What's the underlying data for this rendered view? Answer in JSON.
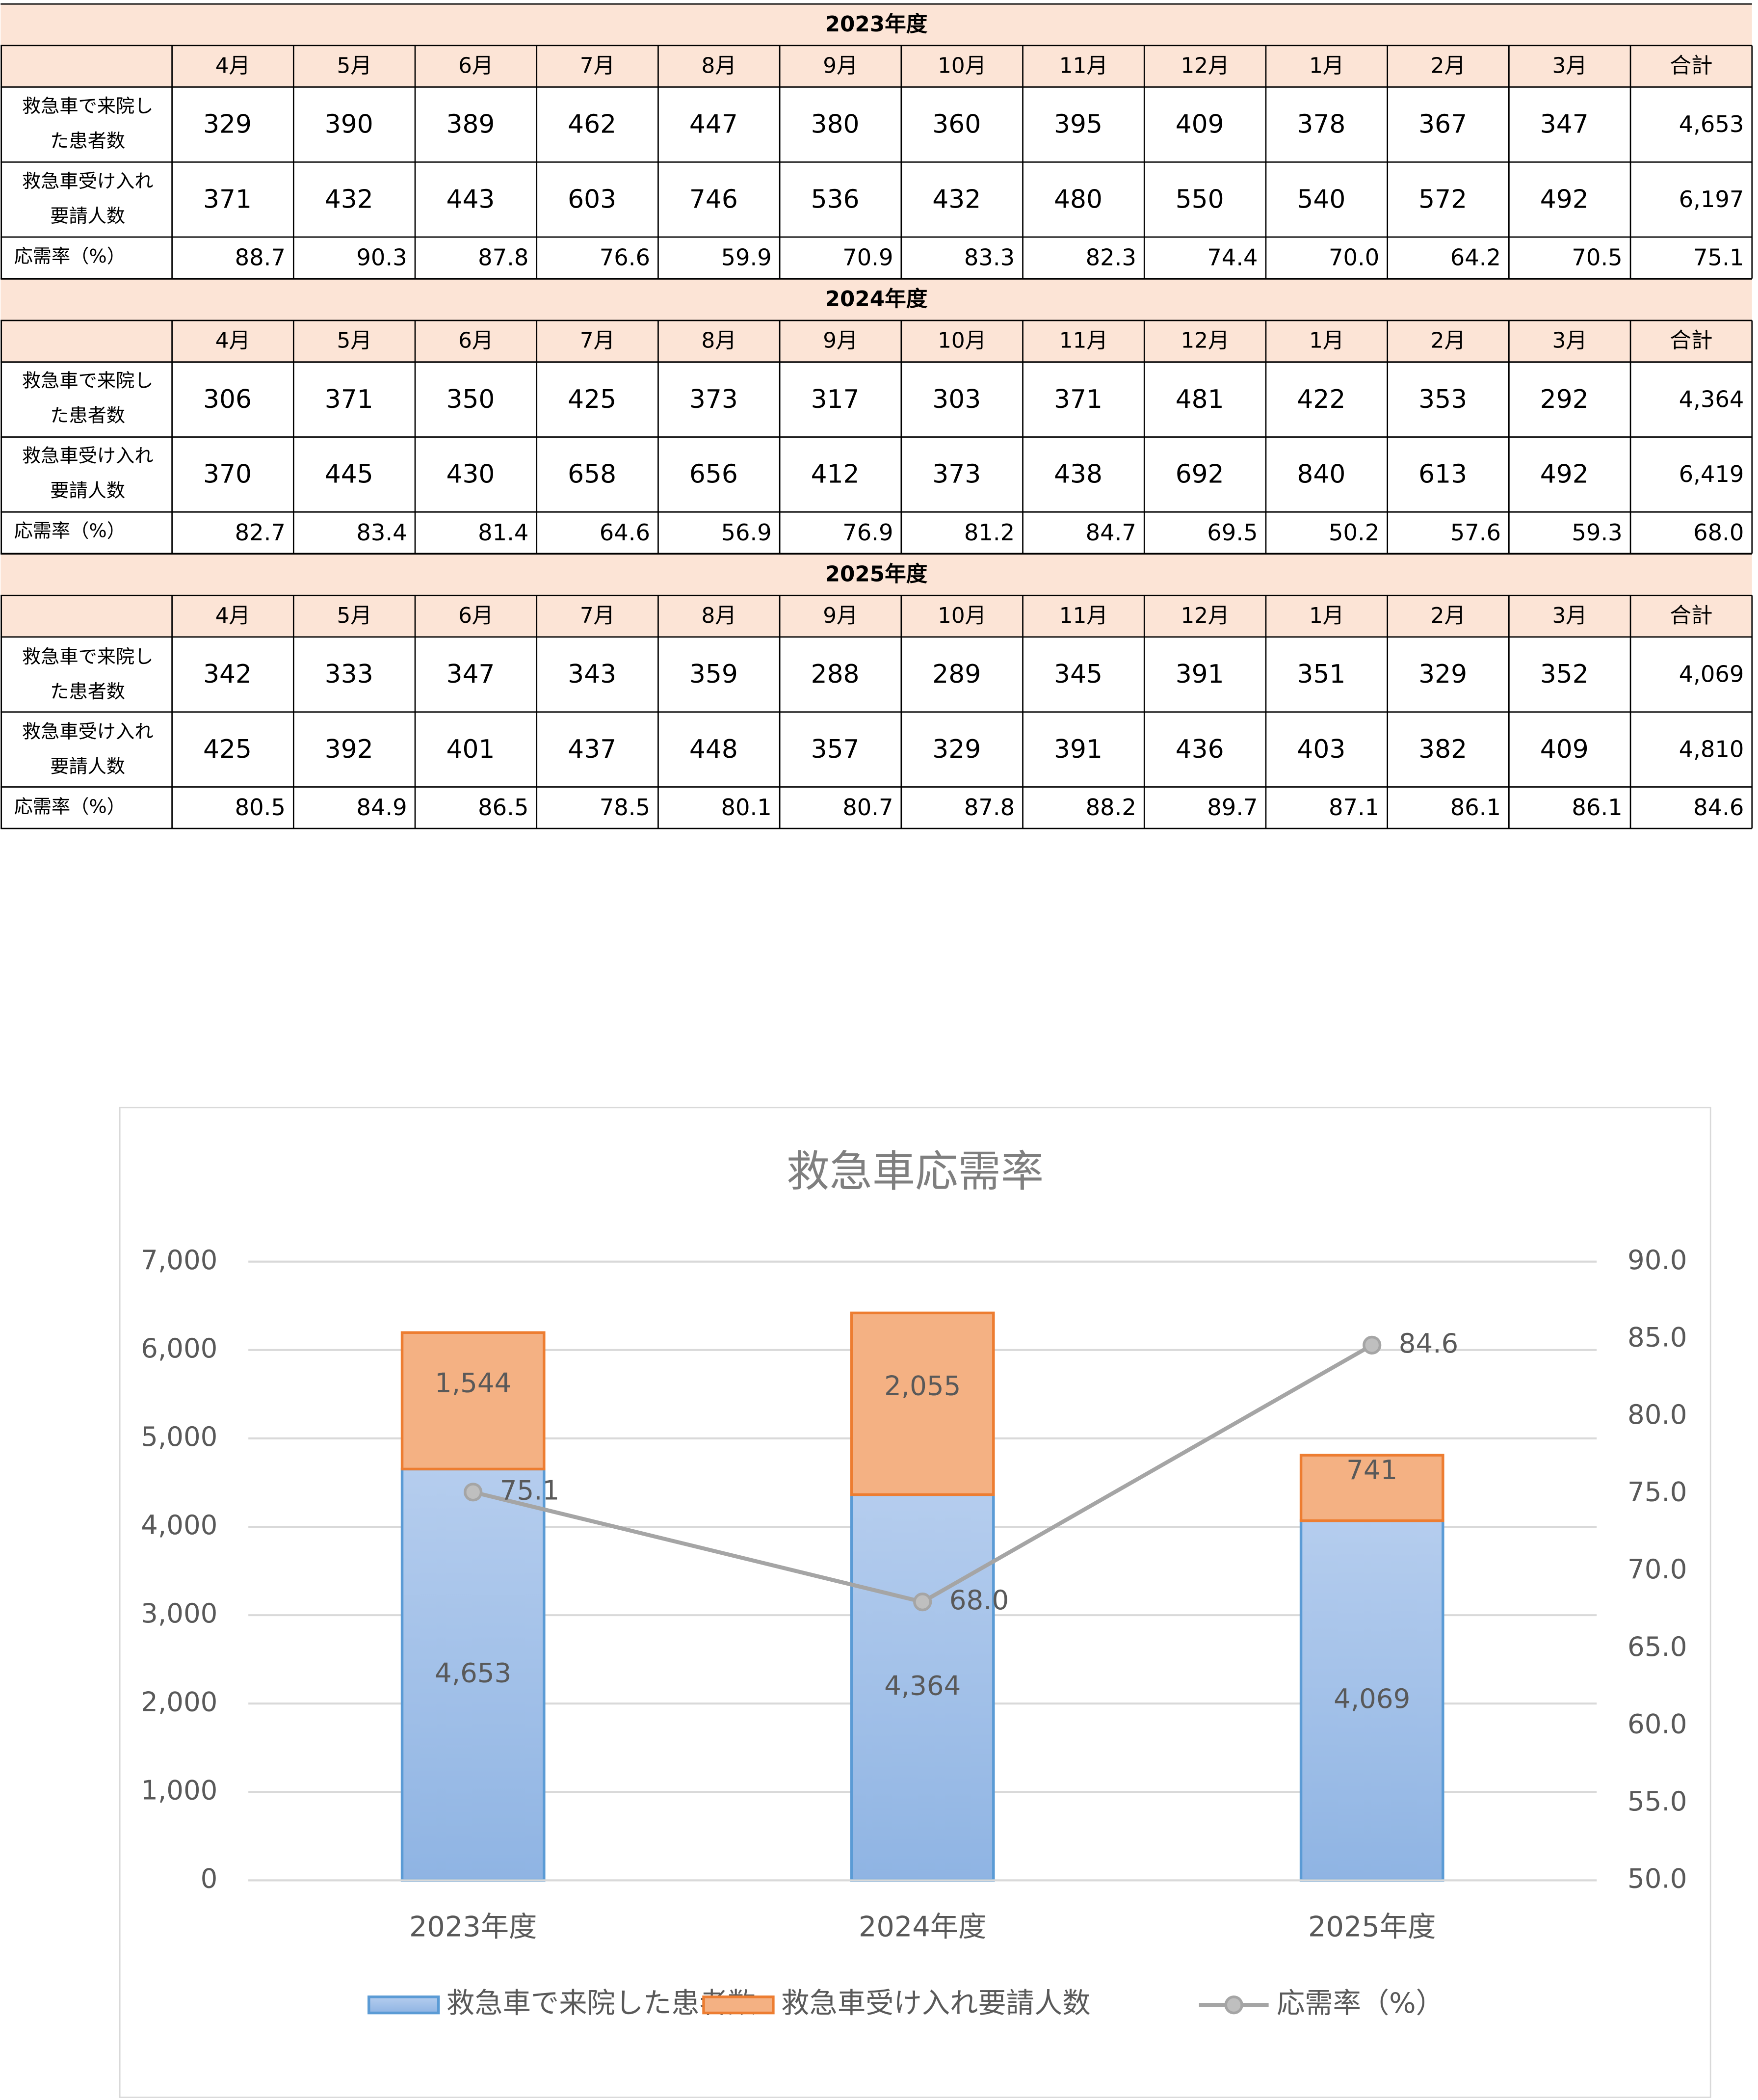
{
  "tables": [
    {
      "title": "2023年度",
      "header": [
        "4月",
        "5月",
        "6月",
        "7月",
        "8月",
        "9月",
        "10月",
        "11月",
        "12月",
        "1月",
        "2月",
        "3月",
        "合計"
      ],
      "rows": [
        {
          "label": "救急車で来院した患者数",
          "cells": [
            "329",
            "390",
            "389",
            "462",
            "447",
            "380",
            "360",
            "395",
            "409",
            "378",
            "367",
            "347",
            "4,653"
          ]
        },
        {
          "label": "救急車受け入れ要請人数",
          "cells": [
            "371",
            "432",
            "443",
            "603",
            "746",
            "536",
            "432",
            "480",
            "550",
            "540",
            "572",
            "492",
            "6,197"
          ]
        },
        {
          "label": "応需率（%）",
          "cells": [
            "88.7",
            "90.3",
            "87.8",
            "76.6",
            "59.9",
            "70.9",
            "83.3",
            "82.3",
            "74.4",
            "70.0",
            "64.2",
            "70.5",
            "75.1"
          ]
        }
      ]
    },
    {
      "title": "2024年度",
      "header": [
        "4月",
        "5月",
        "6月",
        "7月",
        "8月",
        "9月",
        "10月",
        "11月",
        "12月",
        "1月",
        "2月",
        "3月",
        "合計"
      ],
      "rows": [
        {
          "label": "救急車で来院した患者数",
          "cells": [
            "306",
            "371",
            "350",
            "425",
            "373",
            "317",
            "303",
            "371",
            "481",
            "422",
            "353",
            "292",
            "4,364"
          ]
        },
        {
          "label": "救急車受け入れ要請人数",
          "cells": [
            "370",
            "445",
            "430",
            "658",
            "656",
            "412",
            "373",
            "438",
            "692",
            "840",
            "613",
            "492",
            "6,419"
          ]
        },
        {
          "label": "応需率（%）",
          "cells": [
            "82.7",
            "83.4",
            "81.4",
            "64.6",
            "56.9",
            "76.9",
            "81.2",
            "84.7",
            "69.5",
            "50.2",
            "57.6",
            "59.3",
            "68.0"
          ]
        }
      ]
    },
    {
      "title": "2025年度",
      "header": [
        "4月",
        "5月",
        "6月",
        "7月",
        "8月",
        "9月",
        "10月",
        "11月",
        "12月",
        "1月",
        "2月",
        "3月",
        "合計"
      ],
      "rows": [
        {
          "label": "救急車で来院した患者数",
          "cells": [
            "342",
            "333",
            "347",
            "343",
            "359",
            "288",
            "289",
            "345",
            "391",
            "351",
            "329",
            "352",
            "4,069"
          ]
        },
        {
          "label": "救急車受け入れ要請人数",
          "cells": [
            "425",
            "392",
            "401",
            "437",
            "448",
            "357",
            "329",
            "391",
            "436",
            "403",
            "382",
            "409",
            "4,810"
          ]
        },
        {
          "label": "応需率（%）",
          "cells": [
            "80.5",
            "84.9",
            "86.5",
            "78.5",
            "80.1",
            "80.7",
            "87.8",
            "88.2",
            "89.7",
            "87.1",
            "86.1",
            "86.1",
            "84.6"
          ]
        }
      ]
    }
  ],
  "chart_data": {
    "type": "bar",
    "stacked": true,
    "title": "救急車応需率",
    "categories": [
      "2023年度",
      "2024年度",
      "2025年度"
    ],
    "series": [
      {
        "name": "救急車で来院した患者数",
        "color": "#9dbde6",
        "values": [
          4653,
          4364,
          4069
        ],
        "value_labels": [
          "4,653",
          "4,364",
          "4,069"
        ]
      },
      {
        "name": "救急車受け入れ要請人数",
        "color": "#f4b183",
        "values": [
          1544,
          2055,
          741
        ],
        "value_labels": [
          "1,544",
          "2,055",
          "741"
        ]
      },
      {
        "name": "応需率（%）",
        "type": "line",
        "axis": "y2",
        "color": "#a5a5a5",
        "values": [
          75.1,
          68.0,
          84.6
        ],
        "value_labels": [
          "75.1",
          "68.0",
          "84.6"
        ]
      }
    ],
    "ylim": [
      0,
      7000
    ],
    "yticks": [
      0,
      {
        "value": 1000,
        "label": "1,000"
      },
      {
        "value": 2000,
        "label": "2,000"
      },
      {
        "value": 3000,
        "label": "3,000"
      },
      {
        "value": 4000,
        "label": "4,000"
      },
      {
        "value": 5000,
        "label": "5,000"
      },
      {
        "value": 6000,
        "label": "6,000"
      },
      {
        "value": 7000,
        "label": "7,000"
      }
    ],
    "y2lim": [
      50,
      90
    ],
    "y2ticks": [
      {
        "value": 50,
        "label": "50.0"
      },
      {
        "value": 55,
        "label": "55.0"
      },
      {
        "value": 60,
        "label": "60.0"
      },
      {
        "value": 65,
        "label": "65.0"
      },
      {
        "value": 70,
        "label": "70.0"
      },
      {
        "value": 75,
        "label": "75.0"
      },
      {
        "value": 80,
        "label": "80.0"
      },
      {
        "value": 85,
        "label": "85.0"
      },
      {
        "value": 90,
        "label": "90.0"
      }
    ],
    "grid": true,
    "legend": "bottom"
  }
}
